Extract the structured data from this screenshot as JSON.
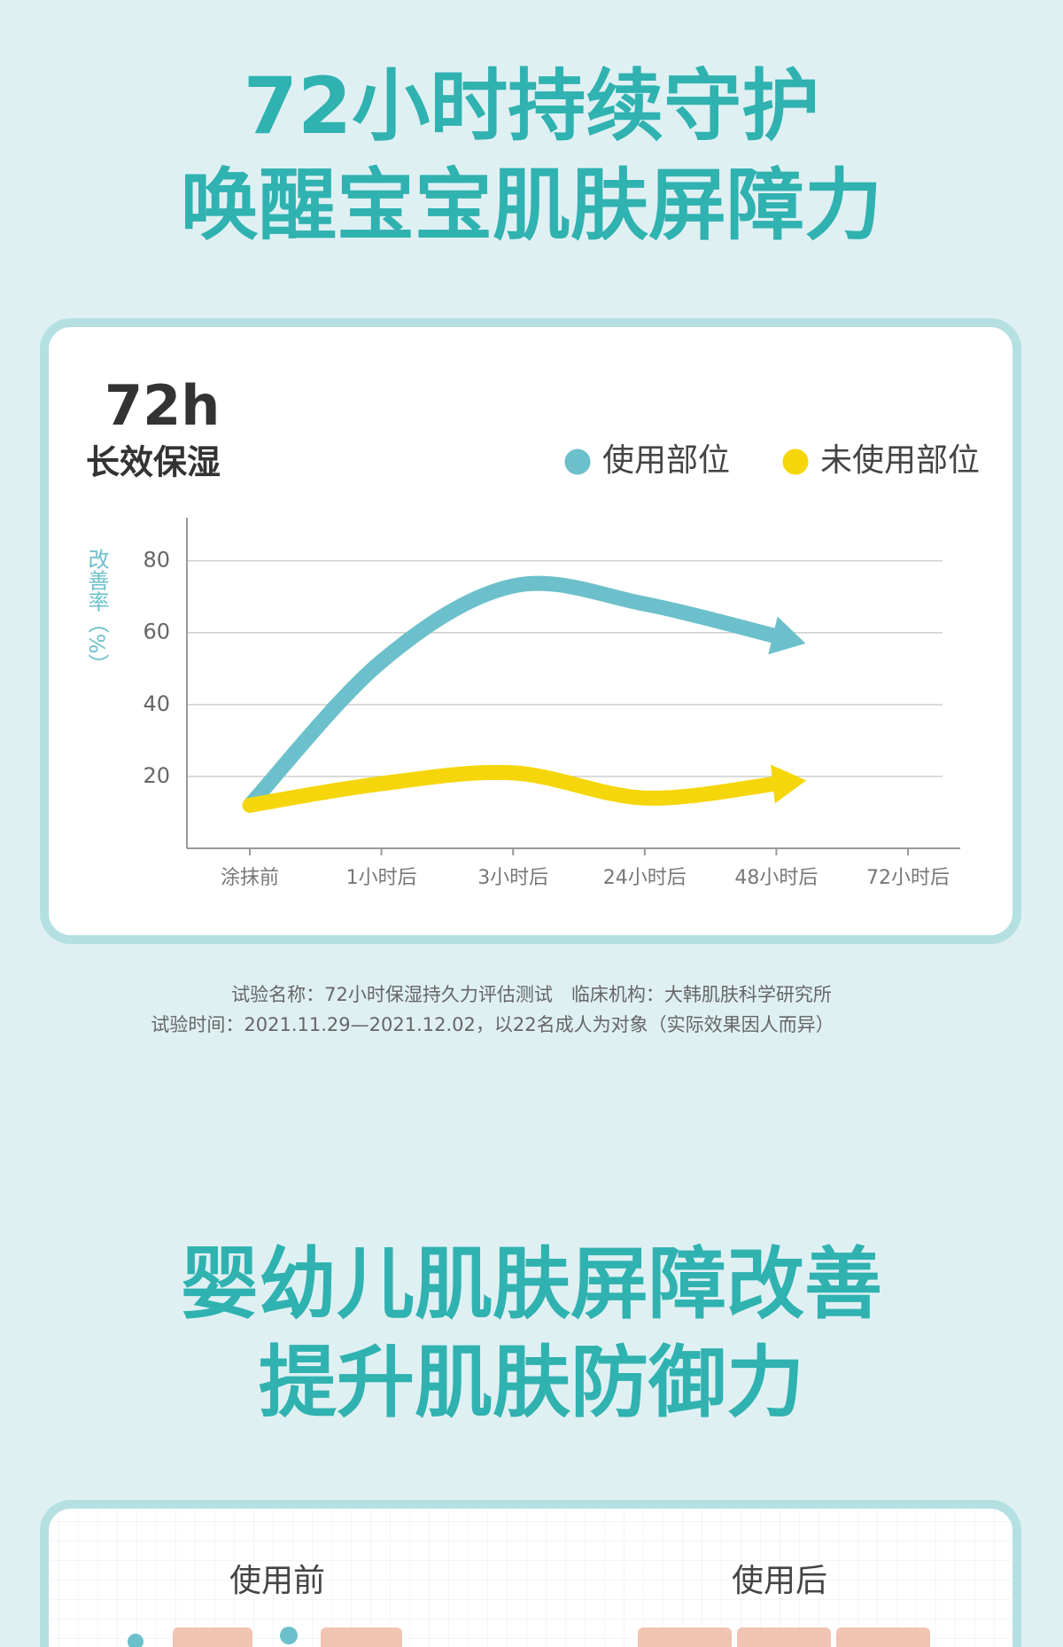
{
  "header": {
    "lines": [
      "72小时持续守护",
      "唤醒宝宝肌肤屏障力"
    ]
  },
  "chart_data": {
    "type": "line",
    "title": "72h",
    "subtitle": "长效保湿",
    "y_label": "改善率（%）",
    "categories": [
      "涂抹前",
      "1小时后",
      "3小时后",
      "24小时后",
      "48小时后",
      "72小时后"
    ],
    "series": [
      {
        "name": "使用部位",
        "color": "#6cc0cb",
        "values": [
          12,
          52,
          73,
          68,
          59,
          null
        ]
      },
      {
        "name": "未使用部位",
        "color": "#f5d60a",
        "values": [
          12,
          18,
          21,
          14,
          18,
          null
        ]
      }
    ],
    "ylim": [
      0,
      92
    ],
    "yticks": [
      20,
      40,
      60,
      80
    ],
    "grid": true,
    "legend": "top-right"
  },
  "notes": [
    "试验名称：72小时保湿持久力评估测试　临床机构：大韩肌肤科学研究所",
    "试验时间：2021.11.29—2021.12.02，以22名成人为对象（实际效果因人而异）"
  ],
  "section2": {
    "lines": [
      "婴幼儿肌肤屏障改善",
      "提升肌肤防御力"
    ],
    "labels": [
      "使用前",
      "使用后"
    ]
  }
}
